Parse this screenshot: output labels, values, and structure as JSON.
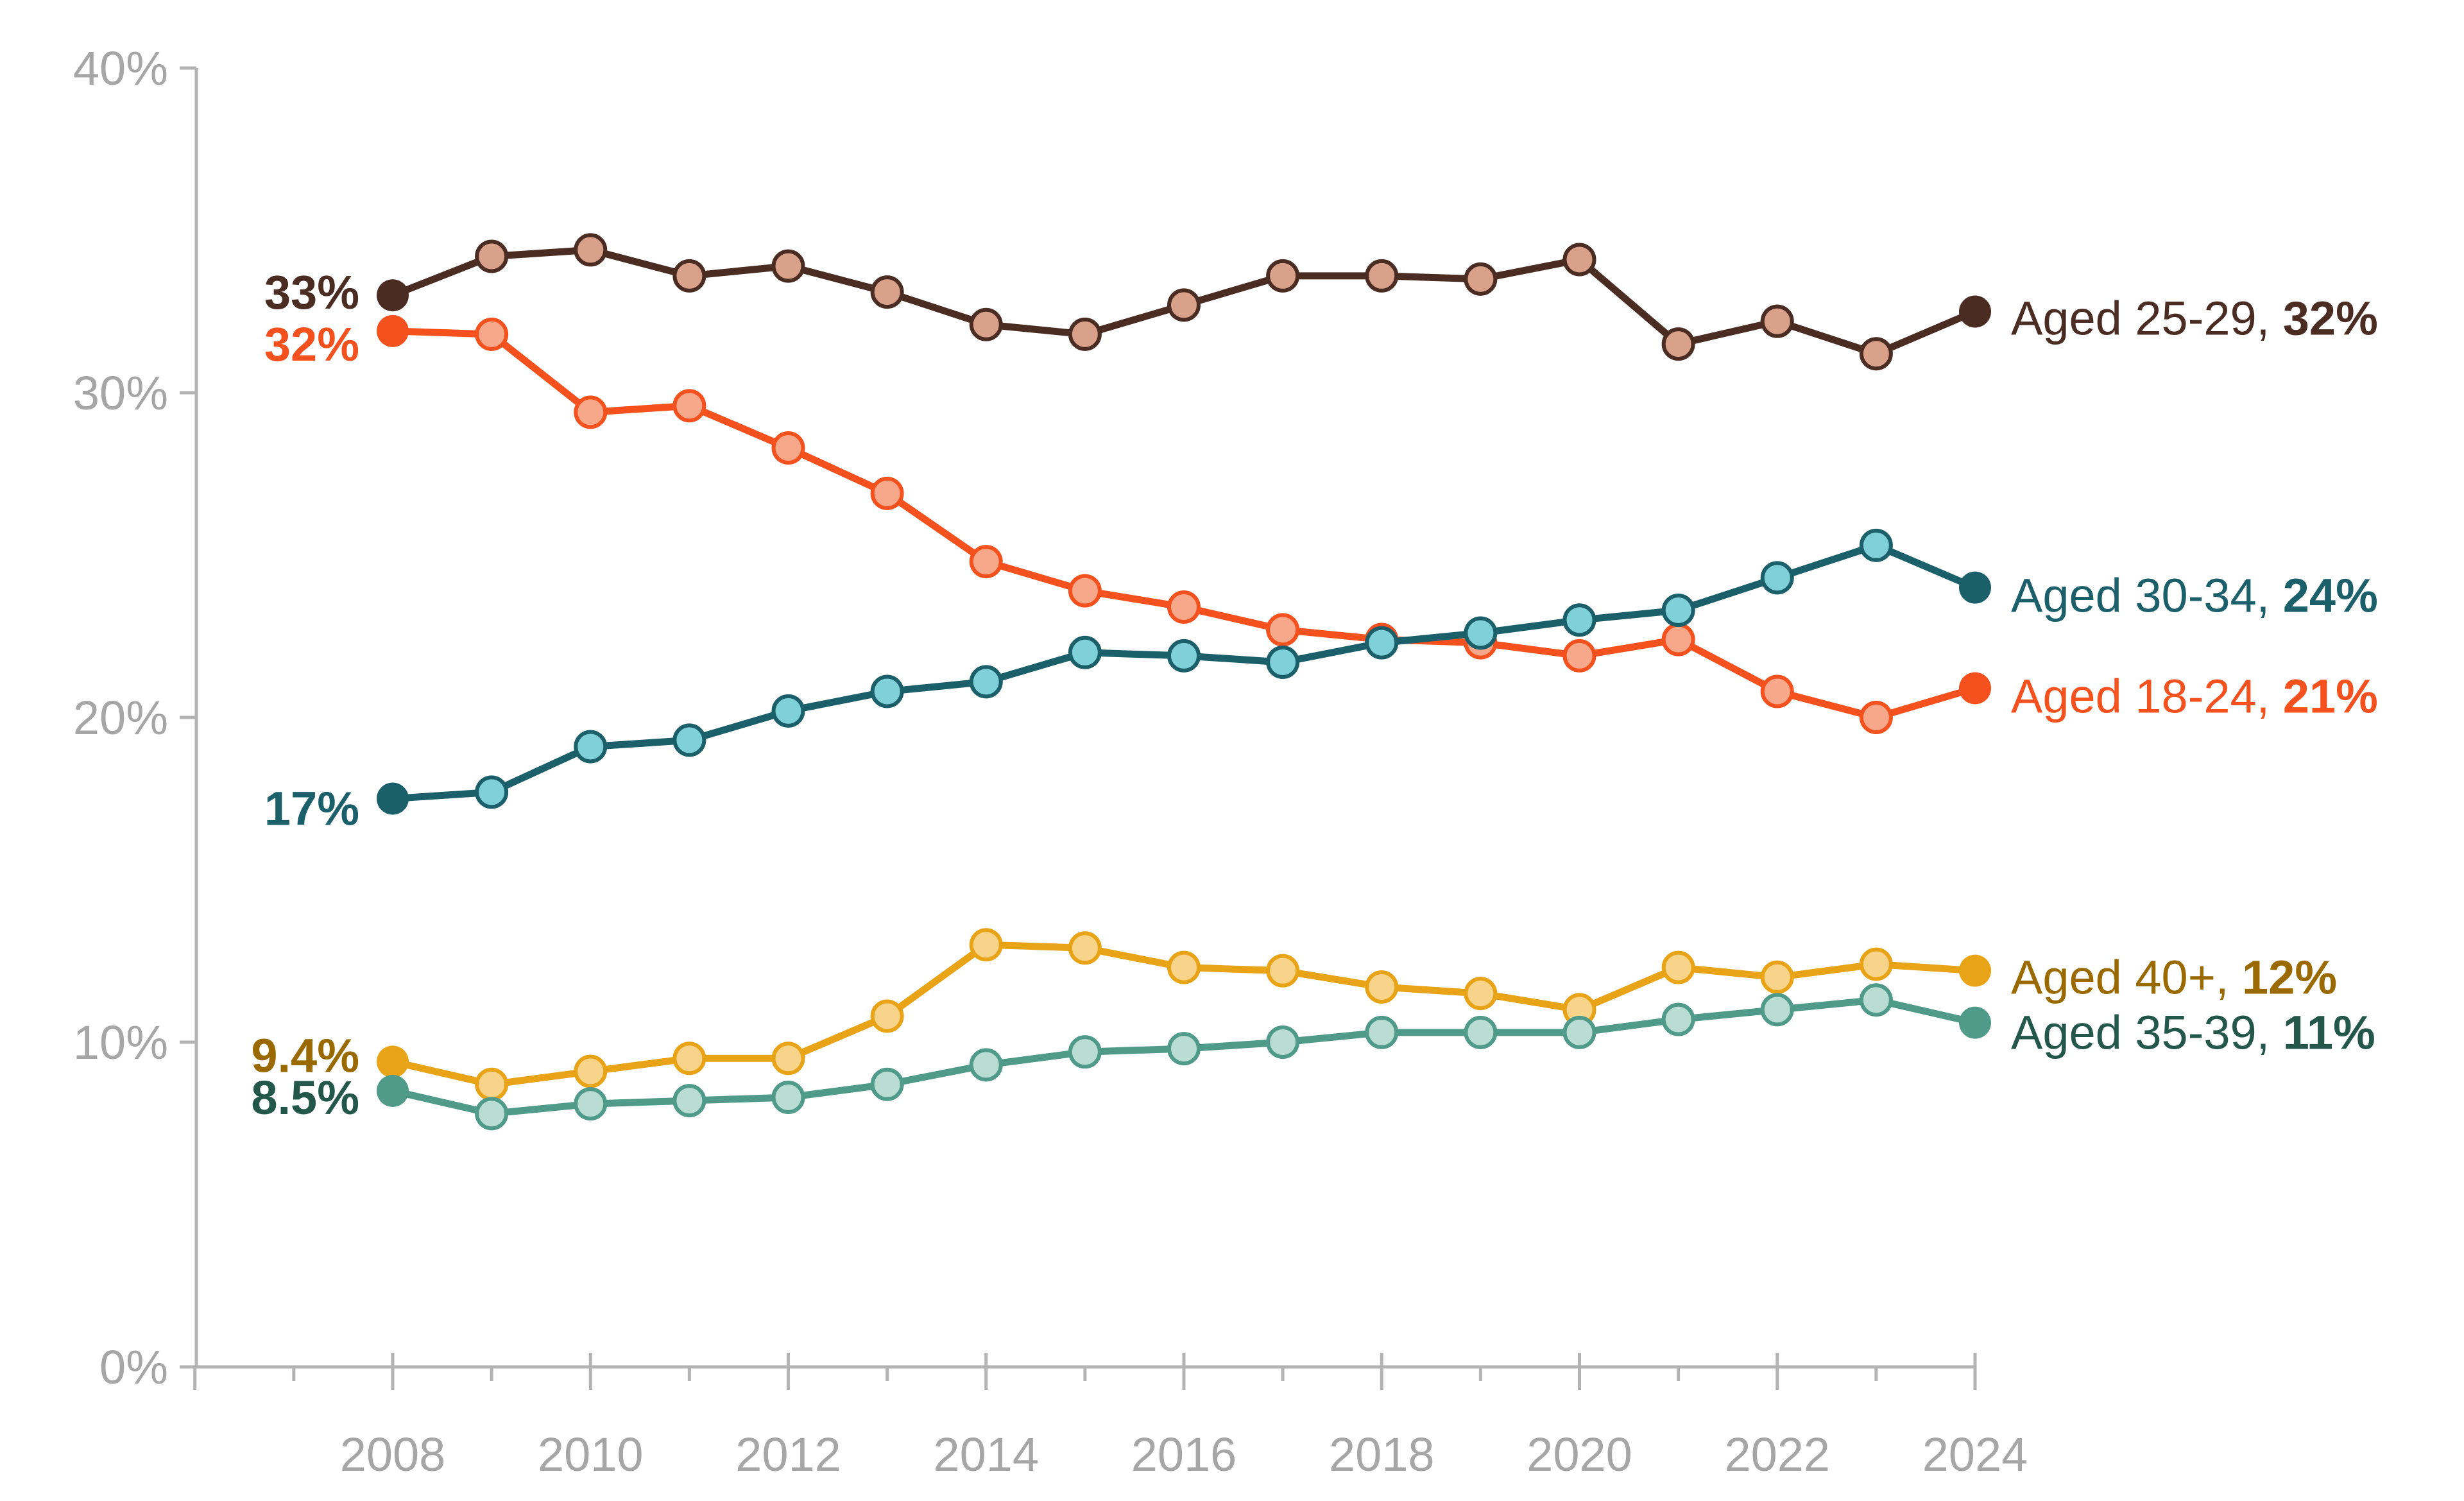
{
  "chart_data": {
    "type": "line",
    "title": "",
    "xlabel": "",
    "ylabel": "",
    "ylim": [
      0,
      40
    ],
    "yticks": [
      "0%",
      "10%",
      "20%",
      "30%",
      "40%"
    ],
    "xticks": [
      "2008",
      "2010",
      "2012",
      "2014",
      "2016",
      "2018",
      "2020",
      "2022",
      "2024"
    ],
    "x": [
      2008,
      2009,
      2010,
      2011,
      2012,
      2013,
      2014,
      2015,
      2016,
      2017,
      2018,
      2019,
      2020,
      2021,
      2022,
      2023,
      2024
    ],
    "grid": false,
    "legend": "direct labels at right end of lines",
    "series": [
      {
        "name": "Aged 25-29",
        "start_label": "33%",
        "end_label_prefix": "Aged 25-29, ",
        "end_label_value": "32%",
        "color": "#4a2c22",
        "marker_fill": "#d9a08a",
        "values": [
          33.0,
          34.2,
          34.4,
          33.6,
          33.9,
          33.1,
          32.1,
          31.8,
          32.7,
          33.6,
          33.6,
          33.5,
          34.1,
          31.5,
          32.2,
          31.2,
          32.5
        ]
      },
      {
        "name": "Aged 18-24",
        "start_label": "32%",
        "end_label_prefix": "Aged 18-24, ",
        "end_label_value": "21%",
        "color": "#f4511e",
        "marker_fill": "#f7a88a",
        "values": [
          31.9,
          31.8,
          29.4,
          29.6,
          28.3,
          26.9,
          24.8,
          23.9,
          23.4,
          22.7,
          22.4,
          22.3,
          21.9,
          22.4,
          20.8,
          20.0,
          20.9
        ]
      },
      {
        "name": "Aged 30-34",
        "start_label": "17%",
        "end_label_prefix": "Aged 30-34, ",
        "end_label_value": "24%",
        "color": "#1a5f6a",
        "marker_fill": "#7fd0d8",
        "values": [
          17.5,
          17.7,
          19.1,
          19.3,
          20.2,
          20.8,
          21.1,
          22.0,
          21.9,
          21.7,
          22.3,
          22.6,
          23.0,
          23.3,
          24.3,
          25.3,
          24.0
        ]
      },
      {
        "name": "Aged 40+",
        "start_label": "9.4%",
        "end_label_prefix": "Aged 40+, ",
        "end_label_value": "12%",
        "color": "#e8a317",
        "label_color": "#9a6a00",
        "marker_fill": "#f8d48a",
        "values": [
          9.4,
          8.7,
          9.1,
          9.5,
          9.5,
          10.8,
          13.0,
          12.9,
          12.3,
          12.2,
          11.7,
          11.5,
          11.0,
          12.3,
          12.0,
          12.4,
          12.2
        ]
      },
      {
        "name": "Aged 35-39",
        "start_label": "8.5%",
        "end_label_prefix": "Aged 35-39, ",
        "end_label_value": "11%",
        "color": "#4f9a88",
        "label_color": "#23574a",
        "marker_fill": "#b9ddd3",
        "values": [
          8.5,
          7.8,
          8.1,
          8.2,
          8.3,
          8.7,
          9.3,
          9.7,
          9.8,
          10.0,
          10.3,
          10.3,
          10.3,
          10.7,
          11.0,
          11.3,
          10.6
        ]
      }
    ]
  }
}
